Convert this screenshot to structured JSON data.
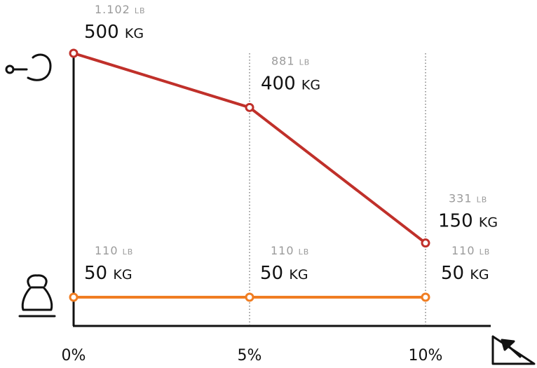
{
  "chart_data": {
    "type": "line",
    "categories": [
      "0%",
      "5%",
      "10%"
    ],
    "series": [
      {
        "values": [
          500,
          400,
          150
        ],
        "unit": "KG",
        "secondary_values": [
          "1.102",
          "881",
          "331"
        ],
        "secondary_unit": "LB",
        "color": "#c0302a",
        "icon": "tow-hook-icon"
      },
      {
        "values": [
          50,
          50,
          50
        ],
        "unit": "KG",
        "secondary_values": [
          "110",
          "110",
          "110"
        ],
        "secondary_unit": "LB",
        "color": "#f07d22",
        "icon": "tongue-weight-icon"
      }
    ],
    "xaxis_icon": "incline-slope-icon",
    "ylim": [
      0,
      550
    ],
    "grid": "vertical-dotted",
    "legend": "icons-left"
  }
}
